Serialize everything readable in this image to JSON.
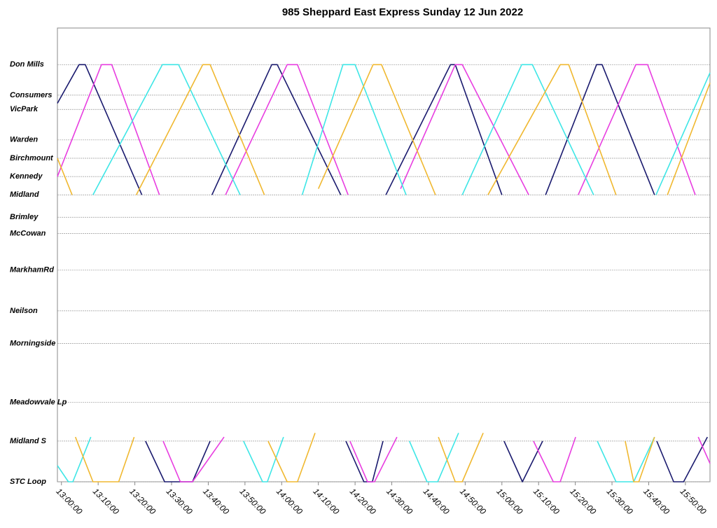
{
  "chart_data": {
    "type": "line",
    "title": "985 Sheppard East Express Sunday 12 Jun 2022",
    "xlim": [
      778.9,
      956.7
    ],
    "xticks": [
      {
        "value": 780,
        "label": "13:00:00"
      },
      {
        "value": 790,
        "label": "13:10:00"
      },
      {
        "value": 800,
        "label": "13:20:00"
      },
      {
        "value": 810,
        "label": "13:30:00"
      },
      {
        "value": 820,
        "label": "13:40:00"
      },
      {
        "value": 830,
        "label": "13:50:00"
      },
      {
        "value": 840,
        "label": "14:00:00"
      },
      {
        "value": 850,
        "label": "14:10:00"
      },
      {
        "value": 860,
        "label": "14:20:00"
      },
      {
        "value": 870,
        "label": "14:30:00"
      },
      {
        "value": 880,
        "label": "14:40:00"
      },
      {
        "value": 890,
        "label": "14:50:00"
      },
      {
        "value": 900,
        "label": "15:00:00"
      },
      {
        "value": 910,
        "label": "15:10:00"
      },
      {
        "value": 920,
        "label": "15:20:00"
      },
      {
        "value": 930,
        "label": "15:30:00"
      },
      {
        "value": 940,
        "label": "15:40:00"
      },
      {
        "value": 950,
        "label": "15:50:00"
      }
    ],
    "ylim": [
      0,
      11.15
    ],
    "yticks": [
      {
        "value": 10.25,
        "label": "Don Mills"
      },
      {
        "value": 9.5,
        "label": "Consumers"
      },
      {
        "value": 9.15,
        "label": "VicPark"
      },
      {
        "value": 8.4,
        "label": "Warden"
      },
      {
        "value": 7.95,
        "label": "Birchmount"
      },
      {
        "value": 7.5,
        "label": "Kennedy"
      },
      {
        "value": 7.05,
        "label": "Midland"
      },
      {
        "value": 6.5,
        "label": "Brimley"
      },
      {
        "value": 6.1,
        "label": "McCowan"
      },
      {
        "value": 5.2,
        "label": "MarkhamRd"
      },
      {
        "value": 4.2,
        "label": "Neilson"
      },
      {
        "value": 3.4,
        "label": "Morningside"
      },
      {
        "value": 1.95,
        "label": "Meadowvale Lp"
      },
      {
        "value": 1.0,
        "label": "Midland S"
      },
      {
        "value": 0,
        "label": "STC Loop"
      }
    ],
    "grid": true,
    "series": [
      {
        "color": "#1a1a6e",
        "x": [
          778.9,
          784.8,
          786.5,
          801.9,
          null,
          802.9,
          808.1,
          815.7,
          820.5,
          null,
          821.0,
          837.3,
          838.8,
          856.1,
          null,
          857.5,
          862.4,
          864.7,
          867.6,
          null,
          868.4,
          886.0,
          887.3,
          900.0,
          null,
          900.6,
          905.6,
          911.1,
          null,
          911.9,
          925.8,
          927.3,
          941.6,
          null,
          942.2,
          946.8,
          949.5,
          956.0
        ],
        "values": [
          9.3,
          10.25,
          10.25,
          7.05,
          null,
          1.0,
          0,
          0,
          1.0,
          null,
          7.05,
          10.25,
          10.25,
          7.05,
          null,
          1.0,
          0,
          0,
          1.0,
          null,
          7.05,
          10.25,
          10.25,
          7.05,
          null,
          1.0,
          0,
          1.0,
          null,
          7.05,
          10.25,
          10.25,
          7.05,
          null,
          1.0,
          0,
          0,
          1.1
        ]
      },
      {
        "color": "#e83ee0",
        "x": [
          778.9,
          790.9,
          793.7,
          806.7,
          null,
          807.7,
          812.4,
          815.7,
          824.3,
          null,
          824.7,
          841.5,
          844.3,
          858.1,
          null,
          858.6,
          863.4,
          865.3,
          871.4,
          null,
          872.4,
          887.3,
          889.2,
          907.3,
          null,
          908.6,
          914.0,
          915.9,
          920.1,
          null,
          920.8,
          936.5,
          939.7,
          952.7,
          null,
          953.5,
          956.7
        ],
        "values": [
          7.5,
          10.25,
          10.25,
          7.05,
          null,
          1.0,
          0,
          0,
          1.1,
          null,
          7.05,
          10.25,
          10.25,
          7.05,
          null,
          1.0,
          0,
          0,
          1.1,
          null,
          7.2,
          10.25,
          10.25,
          7.05,
          null,
          1.0,
          0,
          0,
          1.1,
          null,
          7.05,
          10.25,
          10.25,
          7.05,
          null,
          1.1,
          0.45
        ]
      },
      {
        "color": "#3ee6e6",
        "x": [
          778.9,
          781.9,
          783.1,
          788.0,
          null,
          788.6,
          807.5,
          811.9,
          828.7,
          null,
          829.6,
          834.8,
          836.1,
          840.5,
          null,
          845.6,
          856.7,
          860.0,
          873.9,
          null,
          874.8,
          879.6,
          882.5,
          888.2,
          null,
          889.2,
          905.4,
          908.3,
          925.0,
          null,
          926.0,
          931.1,
          935.9,
          941.6,
          null,
          942.0,
          956.7
        ],
        "values": [
          0.4,
          0,
          0,
          1.1,
          null,
          7.05,
          10.25,
          10.25,
          7.05,
          null,
          1.0,
          0,
          0,
          1.1,
          null,
          7.05,
          10.25,
          10.25,
          7.05,
          null,
          1.0,
          0,
          0,
          1.2,
          null,
          7.05,
          10.25,
          10.25,
          7.05,
          null,
          1.0,
          0,
          0,
          1.1,
          null,
          7.05,
          10.05
        ]
      },
      {
        "color": "#f0b830",
        "x": [
          778.9,
          782.9,
          null,
          783.8,
          788.6,
          795.6,
          799.8,
          null,
          800.4,
          818.5,
          820.5,
          835.3,
          null,
          836.3,
          841.5,
          844.3,
          849.1,
          null,
          850.0,
          864.9,
          867.2,
          881.9,
          null,
          882.7,
          887.3,
          889.2,
          894.9,
          null,
          896.2,
          915.9,
          918.2,
          931.1,
          null,
          933.6,
          935.9,
          937.3,
          941.6,
          null,
          945.1,
          956.7
        ],
        "values": [
          7.95,
          7.05,
          null,
          1.1,
          0,
          0,
          1.1,
          null,
          7.05,
          10.25,
          10.25,
          7.05,
          null,
          1.0,
          0,
          0,
          1.2,
          null,
          7.2,
          10.25,
          10.25,
          7.05,
          null,
          1.1,
          0,
          0,
          1.2,
          null,
          7.05,
          10.25,
          10.25,
          7.05,
          null,
          1.0,
          0,
          0,
          1.1,
          null,
          7.05,
          9.8
        ]
      }
    ]
  }
}
